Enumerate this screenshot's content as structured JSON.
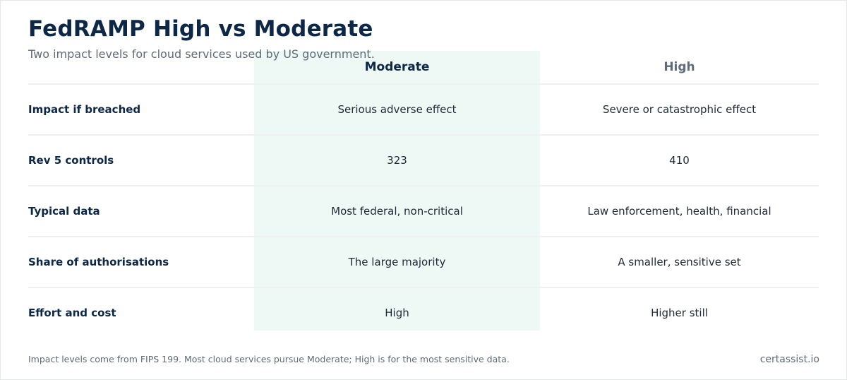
{
  "title": "FedRAMP High vs Moderate",
  "subtitle": "Two impact levels for cloud services used by US government.",
  "table": {
    "columns": [
      "Moderate",
      "High"
    ],
    "rows": [
      {
        "label": "Impact if breached",
        "moderate": "Serious adverse effect",
        "high": "Severe or catastrophic effect"
      },
      {
        "label": "Rev 5 controls",
        "moderate": "323",
        "high": "410"
      },
      {
        "label": "Typical data",
        "moderate": "Most federal, non-critical",
        "high": "Law enforcement, health, financial"
      },
      {
        "label": "Share of authorisations",
        "moderate": "The large majority",
        "high": "A smaller, sensitive set"
      },
      {
        "label": "Effort and cost",
        "moderate": "High",
        "high": "Higher still"
      }
    ]
  },
  "footnote": "Impact levels come from FIPS 199. Most cloud services pursue Moderate; High is for the most sensitive data.",
  "brand": "certassist.io",
  "colors": {
    "heading": "#0d2747",
    "muted": "#5f6b7a",
    "highlight_column": "#eef8f5",
    "divider": "#eef0f3"
  }
}
